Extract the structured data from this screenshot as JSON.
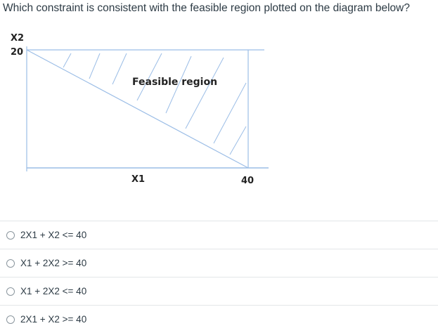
{
  "question": {
    "text": "Which constraint is consistent with the feasible region plotted on the diagram below?"
  },
  "diagram": {
    "y_axis_label": "X2",
    "y_intercept_label": "20",
    "x_axis_label": "X1",
    "x_intercept_label": "40",
    "region_label": "Feasible region",
    "colors": {
      "lines": "#8fb4e0",
      "axis": "#9bbde6"
    }
  },
  "options": [
    {
      "label": "2X1 + X2 <= 40"
    },
    {
      "label": "X1 + 2X2 >= 40"
    },
    {
      "label": "X1 + 2X2 <= 40"
    },
    {
      "label": "2X1 + X2 >= 40"
    }
  ]
}
